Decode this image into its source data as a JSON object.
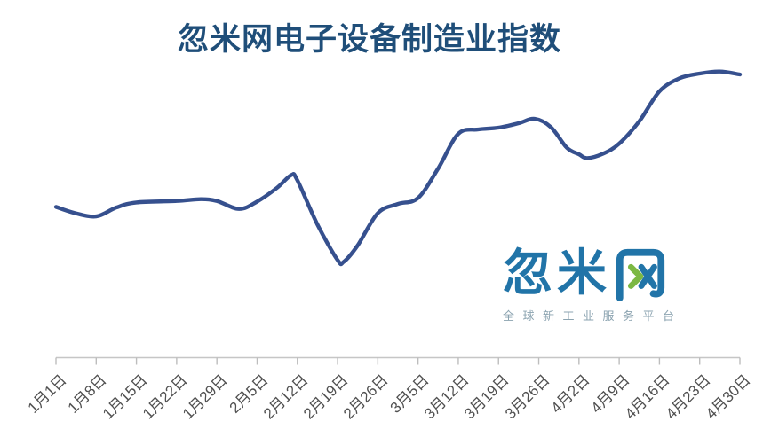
{
  "title": "忽米网电子设备制造业指数",
  "watermark": {
    "logo_text": "忽米网",
    "logo_text_prefix": "忽米",
    "tagline": "全球新工业服务平台",
    "logo_blue": "#2174a8",
    "logo_green": "#7cb843",
    "tagline_color": "#8ba3b0"
  },
  "colors": {
    "title": "#1f4e79",
    "line": "#36508e",
    "axis": "#c6c6c6",
    "tick": "#bdbdbd",
    "tick_label": "#505050",
    "background": "#ffffff"
  },
  "chart_data": {
    "type": "line",
    "title": "忽米网电子设备制造业指数",
    "categories": [
      "1月1日",
      "1月8日",
      "1月15日",
      "1月22日",
      "1月29日",
      "2月5日",
      "2月12日",
      "2月19日",
      "2月26日",
      "3月5日",
      "3月12日",
      "3月19日",
      "3月26日",
      "4月2日",
      "4月9日",
      "4月16日",
      "4月23日",
      "4月30日"
    ],
    "values": [
      51,
      48,
      52,
      53,
      53,
      53,
      60,
      33,
      49,
      54,
      76,
      78,
      80,
      69,
      72,
      90,
      96,
      96
    ],
    "curve_points": [
      [
        0.0,
        51.0
      ],
      [
        0.45,
        49.0
      ],
      [
        1.0,
        47.8
      ],
      [
        1.5,
        50.8
      ],
      [
        2.0,
        52.5
      ],
      [
        3.0,
        53.0
      ],
      [
        3.6,
        53.6
      ],
      [
        4.0,
        53.0
      ],
      [
        4.55,
        50.3
      ],
      [
        5.0,
        52.8
      ],
      [
        5.5,
        57.5
      ],
      [
        5.85,
        61.8
      ],
      [
        6.0,
        60.0
      ],
      [
        6.5,
        45.0
      ],
      [
        7.0,
        33.0
      ],
      [
        7.15,
        32.4
      ],
      [
        7.5,
        38.0
      ],
      [
        8.0,
        48.9
      ],
      [
        8.5,
        52.0
      ],
      [
        9.0,
        54.0
      ],
      [
        9.5,
        64.0
      ],
      [
        10.0,
        75.7
      ],
      [
        10.5,
        77.2
      ],
      [
        11.0,
        77.8
      ],
      [
        11.5,
        79.3
      ],
      [
        11.9,
        80.8
      ],
      [
        12.3,
        78.0
      ],
      [
        12.7,
        71.0
      ],
      [
        13.0,
        68.8
      ],
      [
        13.2,
        67.5
      ],
      [
        13.6,
        69.0
      ],
      [
        14.0,
        72.4
      ],
      [
        14.5,
        80.0
      ],
      [
        15.0,
        90.1
      ],
      [
        15.5,
        94.5
      ],
      [
        16.0,
        96.1
      ],
      [
        16.5,
        96.8
      ],
      [
        17.0,
        95.8
      ]
    ],
    "xlabel": "",
    "ylabel": "",
    "ylim": [
      0,
      100
    ],
    "y_axis_visible": false,
    "x_tick_rotation": -45,
    "grid": false,
    "legend": false,
    "note": "无Y轴刻度；数值为依曲线像素位置估算的相对指数（0-100标度）"
  }
}
